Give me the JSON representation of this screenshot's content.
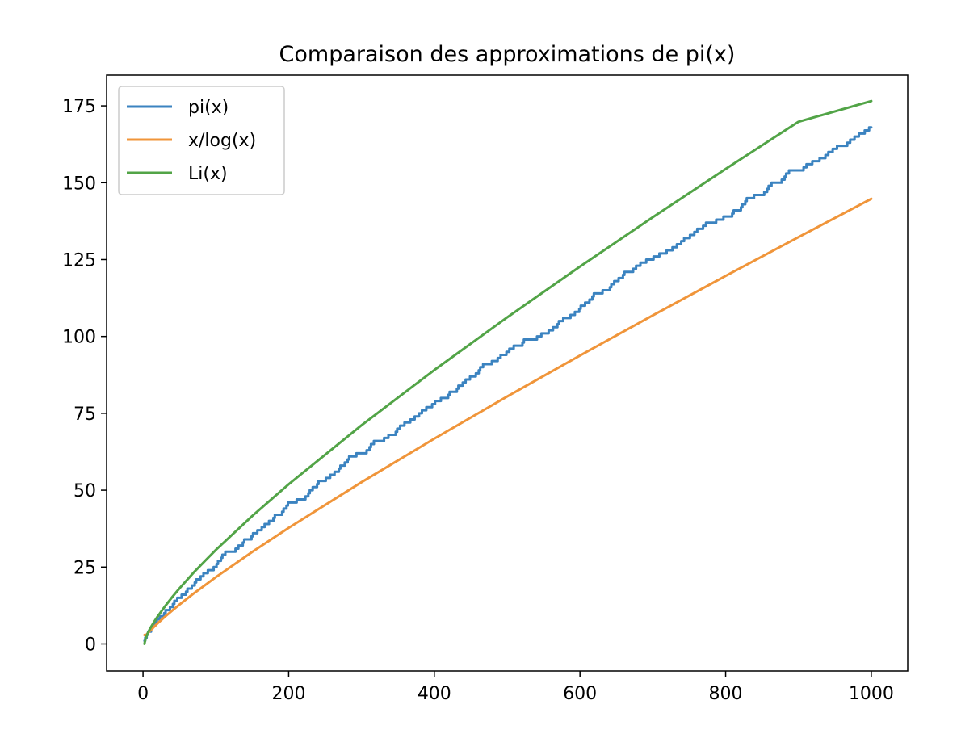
{
  "chart_data": {
    "type": "line",
    "title": "Comparaison des approximations de pi(x)",
    "xlabel": "",
    "ylabel": "",
    "xlim": [
      -50,
      1050
    ],
    "ylim": [
      -8.8,
      185
    ],
    "xticks": [
      0,
      200,
      400,
      600,
      800,
      1000
    ],
    "yticks": [
      0,
      25,
      50,
      75,
      100,
      125,
      150,
      175
    ],
    "grid": false,
    "legend": {
      "placement": "upper-left",
      "entries": [
        "pi(x)",
        "x/log(x)",
        "Li(x)"
      ]
    },
    "series": [
      {
        "name": "pi(x)",
        "color": "#3b83c0",
        "style": "step",
        "x": [
          2,
          3,
          5,
          7,
          11,
          13,
          17,
          19,
          23,
          29,
          31,
          37,
          41,
          43,
          47,
          53,
          59,
          61,
          67,
          71,
          73,
          79,
          83,
          89,
          97,
          101,
          103,
          107,
          109,
          113,
          127,
          131,
          137,
          139,
          149,
          151,
          157,
          163,
          167,
          173,
          179,
          181,
          191,
          193,
          197,
          199,
          211,
          223,
          227,
          229,
          233,
          239,
          241,
          251,
          257,
          263,
          269,
          271,
          277,
          281,
          283,
          293,
          307,
          311,
          313,
          317,
          331,
          337,
          347,
          349,
          353,
          359,
          367,
          373,
          379,
          383,
          389,
          397,
          401,
          409,
          419,
          421,
          431,
          433,
          439,
          443,
          449,
          457,
          461,
          463,
          467,
          479,
          487,
          491,
          499,
          503,
          509,
          521,
          523,
          541,
          547,
          557,
          563,
          569,
          571,
          577,
          587,
          593,
          599,
          601,
          607,
          613,
          617,
          619,
          631,
          641,
          643,
          647,
          653,
          659,
          661,
          673,
          677,
          683,
          691,
          701,
          709,
          719,
          727,
          733,
          739,
          743,
          751,
          757,
          761,
          769,
          773,
          787,
          797,
          809,
          811,
          821,
          823,
          827,
          829,
          839,
          853,
          857,
          859,
          863,
          877,
          881,
          883,
          887,
          907,
          911,
          919,
          929,
          937,
          941,
          947,
          953,
          967,
          971,
          977,
          983,
          991,
          997,
          1000
        ],
        "y": [
          1,
          2,
          3,
          4,
          5,
          6,
          7,
          8,
          9,
          10,
          11,
          12,
          13,
          14,
          15,
          16,
          17,
          18,
          19,
          20,
          21,
          22,
          23,
          24,
          25,
          26,
          27,
          28,
          29,
          30,
          31,
          32,
          33,
          34,
          35,
          36,
          37,
          38,
          39,
          40,
          41,
          42,
          43,
          44,
          45,
          46,
          47,
          48,
          49,
          50,
          51,
          52,
          53,
          54,
          55,
          56,
          57,
          58,
          59,
          60,
          61,
          62,
          63,
          64,
          65,
          66,
          67,
          68,
          69,
          70,
          71,
          72,
          73,
          74,
          75,
          76,
          77,
          78,
          79,
          80,
          81,
          82,
          83,
          84,
          85,
          86,
          87,
          88,
          89,
          90,
          91,
          92,
          93,
          94,
          95,
          96,
          97,
          98,
          99,
          100,
          101,
          102,
          103,
          104,
          105,
          106,
          107,
          108,
          109,
          110,
          111,
          112,
          113,
          114,
          115,
          116,
          117,
          118,
          119,
          120,
          121,
          122,
          123,
          124,
          125,
          126,
          127,
          128,
          129,
          130,
          131,
          132,
          133,
          134,
          135,
          136,
          137,
          138,
          139,
          140,
          141,
          142,
          143,
          144,
          145,
          146,
          147,
          148,
          149,
          150,
          151,
          152,
          153,
          154,
          155,
          156,
          157,
          158,
          159,
          160,
          161,
          162,
          163,
          164,
          165,
          166,
          167,
          168,
          168
        ]
      },
      {
        "name": "x/log(x)",
        "color": "#f0953a",
        "style": "line",
        "x": [
          2,
          3,
          5,
          10,
          15,
          20,
          30,
          40,
          50,
          70,
          100,
          150,
          200,
          300,
          400,
          500,
          600,
          700,
          800,
          900,
          1000
        ],
        "y": [
          2.89,
          2.73,
          3.11,
          4.34,
          5.54,
          6.68,
          8.82,
          10.84,
          12.78,
          16.48,
          21.71,
          29.94,
          37.75,
          52.6,
          66.76,
          80.46,
          93.79,
          106.86,
          119.68,
          132.31,
          144.76
        ]
      },
      {
        "name": "Li(x)",
        "color": "#52a447",
        "style": "line",
        "x": [
          2,
          2.5,
          3,
          4,
          5,
          7,
          10,
          15,
          20,
          30,
          40,
          50,
          70,
          100,
          150,
          200,
          300,
          400,
          500,
          600,
          700,
          800,
          900,
          1000
        ],
        "y": [
          0.0,
          0.65,
          1.12,
          1.92,
          2.59,
          3.77,
          5.12,
          7.09,
          8.9,
          12.19,
          15.21,
          18.05,
          23.35,
          30.58,
          41.62,
          51.93,
          71.11,
          89.08,
          106.2,
          122.73,
          138.78,
          154.46,
          169.83,
          176.56
        ]
      }
    ]
  }
}
